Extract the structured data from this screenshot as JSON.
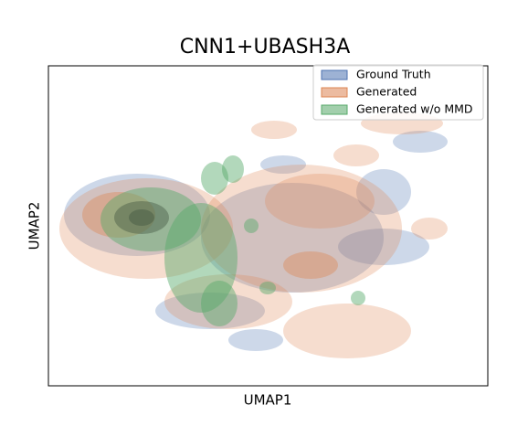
{
  "chart_data": {
    "type": "kde",
    "title": "CNN1+UBASH3A",
    "xlabel": "UMAP1",
    "ylabel": "UMAP2",
    "legend": "upper right",
    "series": [
      {
        "name": "Ground Truth",
        "color": "#4c72b0"
      },
      {
        "name": "Generated",
        "color": "#dd8452"
      },
      {
        "name": "Generated w/o MMD",
        "color": "#55a868"
      }
    ]
  }
}
